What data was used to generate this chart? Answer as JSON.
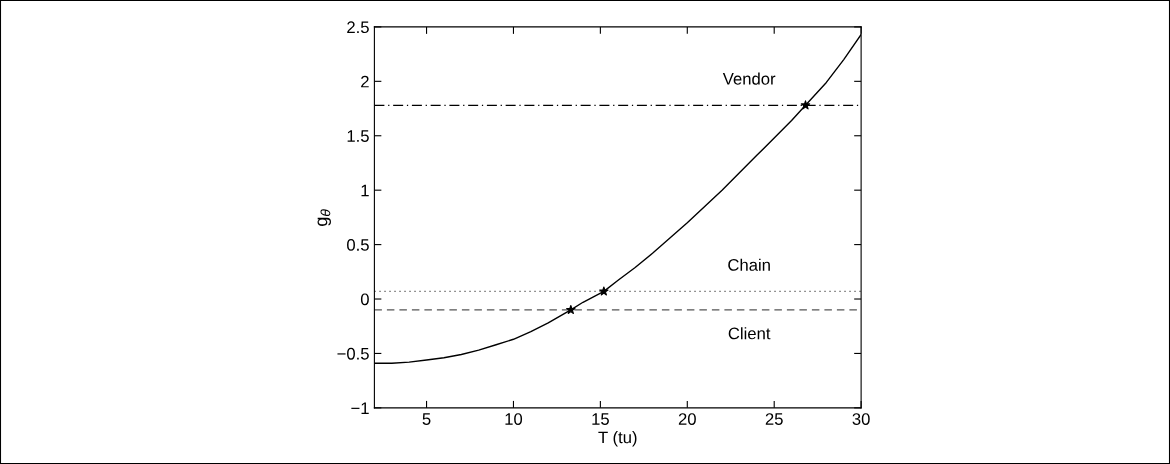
{
  "chart_data": {
    "type": "line",
    "xlabel": "T (tu)",
    "ylabel": "g$_{θ}$",
    "xlim": [
      2,
      30
    ],
    "ylim": [
      -1,
      2.5
    ],
    "xticks": [
      5,
      10,
      15,
      20,
      25,
      30
    ],
    "yticks": [
      -1,
      -0.5,
      0,
      0.5,
      1,
      1.5,
      2,
      2.5
    ],
    "grid": false,
    "series": [
      {
        "color": "#000000",
        "marker": "none",
        "line_style": "solid",
        "x": [
          2,
          3,
          4,
          5,
          6,
          7,
          8,
          9,
          10,
          11,
          12,
          13.3,
          14,
          15.2,
          16,
          17,
          18,
          19,
          20,
          21,
          22,
          23,
          24,
          25,
          26,
          26.8,
          28,
          29,
          30
        ],
        "values": [
          -0.59,
          -0.59,
          -0.58,
          -0.56,
          -0.54,
          -0.51,
          -0.47,
          -0.42,
          -0.37,
          -0.3,
          -0.22,
          -0.1,
          -0.03,
          0.07,
          0.17,
          0.29,
          0.42,
          0.56,
          0.7,
          0.85,
          1.0,
          1.16,
          1.32,
          1.48,
          1.64,
          1.78,
          1.99,
          2.2,
          2.43
        ]
      },
      {
        "type": "scatter",
        "color": "#000000",
        "marker": "star",
        "x": [
          13.3,
          15.2,
          26.8
        ],
        "values": [
          -0.1,
          0.07,
          1.78
        ]
      }
    ],
    "ref_lines": [
      {
        "axis": "y",
        "value": 1.78,
        "label": "Vendor",
        "color": "#000000",
        "line_style": "dashdot"
      },
      {
        "axis": "y",
        "value": 0.07,
        "label": "Chain",
        "color": "#555555",
        "line_style": "dotted"
      },
      {
        "axis": "y",
        "value": -0.1,
        "label": "Client",
        "color": "#555555",
        "line_style": "dashed"
      }
    ]
  }
}
